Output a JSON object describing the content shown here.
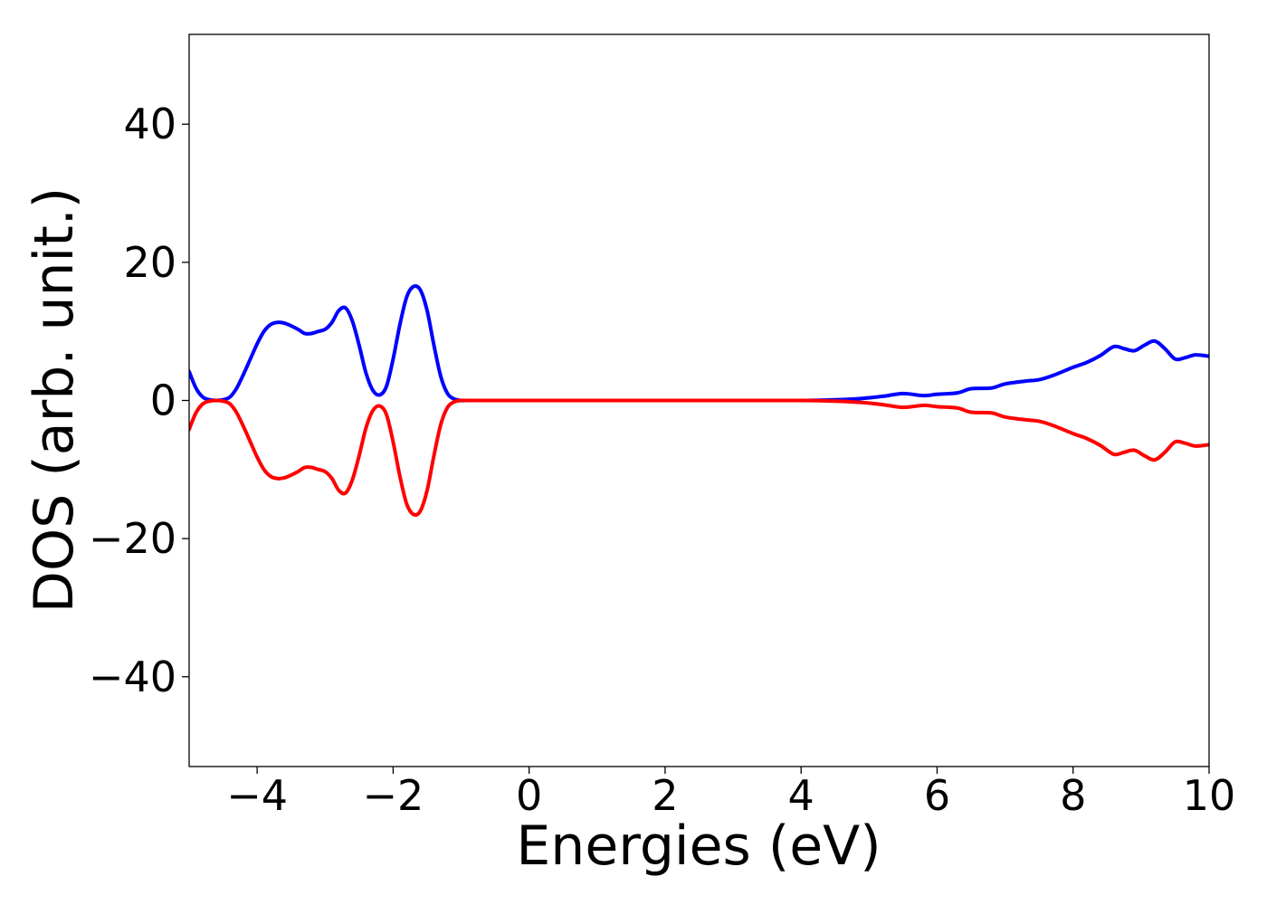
{
  "chart_data": {
    "type": "line",
    "xlabel": "Energies (eV)",
    "ylabel": "DOS (arb. unit.)",
    "xlim": [
      -5,
      10
    ],
    "ylim": [
      -53,
      53
    ],
    "xticks": [
      -4,
      -2,
      0,
      2,
      4,
      6,
      8,
      10
    ],
    "yticks": [
      -40,
      -20,
      0,
      20,
      40
    ],
    "xtick_labels": [
      "−4",
      "−2",
      "0",
      "2",
      "4",
      "6",
      "8",
      "10"
    ],
    "ytick_labels": [
      "−40",
      "−20",
      "0",
      "20",
      "40"
    ],
    "grid": false,
    "series": [
      {
        "color": "#0000ff",
        "x": [
          -5.0,
          -4.9,
          -4.8,
          -4.7,
          -4.6,
          -4.5,
          -4.4,
          -4.3,
          -4.2,
          -4.1,
          -4.0,
          -3.9,
          -3.8,
          -3.7,
          -3.6,
          -3.5,
          -3.4,
          -3.3,
          -3.2,
          -3.1,
          -3.0,
          -2.9,
          -2.8,
          -2.7,
          -2.6,
          -2.5,
          -2.4,
          -2.3,
          -2.2,
          -2.1,
          -2.0,
          -1.9,
          -1.8,
          -1.7,
          -1.6,
          -1.5,
          -1.4,
          -1.3,
          -1.2,
          -1.1,
          -1.0,
          -0.9,
          -0.8,
          -0.7,
          -0.6,
          -0.5,
          0.0,
          1.0,
          2.0,
          3.0,
          4.0,
          4.5,
          4.9,
          5.2,
          5.5,
          5.8,
          6.0,
          6.3,
          6.5,
          6.8,
          7.0,
          7.3,
          7.5,
          7.7,
          8.0,
          8.2,
          8.4,
          8.6,
          8.75,
          8.9,
          9.05,
          9.2,
          9.35,
          9.5,
          9.65,
          9.8,
          10.0
        ],
        "values": [
          4.2,
          1.8,
          0.5,
          0.1,
          0.0,
          0.1,
          0.5,
          1.8,
          3.8,
          6.0,
          8.2,
          10.0,
          11.0,
          11.3,
          11.2,
          10.8,
          10.3,
          9.7,
          9.7,
          10.0,
          10.3,
          11.3,
          13.0,
          13.4,
          11.5,
          8.0,
          4.0,
          1.5,
          0.8,
          2.0,
          6.0,
          11.0,
          15.0,
          16.5,
          16.0,
          13.0,
          8.0,
          3.5,
          1.0,
          0.2,
          0.0,
          0.0,
          0.0,
          0.0,
          0.0,
          0.0,
          0.0,
          0.0,
          0.0,
          0.0,
          0.0,
          0.1,
          0.3,
          0.6,
          1.0,
          0.7,
          0.9,
          1.1,
          1.7,
          1.8,
          2.4,
          2.8,
          3.0,
          3.6,
          4.8,
          5.5,
          6.5,
          7.8,
          7.5,
          7.2,
          8.0,
          8.6,
          7.5,
          6.0,
          6.2,
          6.6,
          6.4
        ]
      },
      {
        "color": "#ff0000",
        "x": [
          -5.0,
          -4.9,
          -4.8,
          -4.7,
          -4.6,
          -4.5,
          -4.4,
          -4.3,
          -4.2,
          -4.1,
          -4.0,
          -3.9,
          -3.8,
          -3.7,
          -3.6,
          -3.5,
          -3.4,
          -3.3,
          -3.2,
          -3.1,
          -3.0,
          -2.9,
          -2.8,
          -2.7,
          -2.6,
          -2.5,
          -2.4,
          -2.3,
          -2.2,
          -2.1,
          -2.0,
          -1.9,
          -1.8,
          -1.7,
          -1.6,
          -1.5,
          -1.4,
          -1.3,
          -1.2,
          -1.1,
          -1.0,
          -0.9,
          -0.8,
          -0.7,
          -0.6,
          -0.5,
          0.0,
          1.0,
          2.0,
          3.0,
          4.0,
          4.5,
          4.9,
          5.2,
          5.5,
          5.8,
          6.0,
          6.3,
          6.5,
          6.8,
          7.0,
          7.3,
          7.5,
          7.7,
          8.0,
          8.2,
          8.4,
          8.6,
          8.75,
          8.9,
          9.05,
          9.2,
          9.35,
          9.5,
          9.65,
          9.8,
          10.0
        ],
        "values": [
          -4.2,
          -1.8,
          -0.5,
          -0.1,
          0.0,
          -0.1,
          -0.5,
          -1.8,
          -3.8,
          -6.0,
          -8.2,
          -10.0,
          -11.0,
          -11.3,
          -11.2,
          -10.8,
          -10.3,
          -9.7,
          -9.7,
          -10.0,
          -10.3,
          -11.3,
          -13.0,
          -13.4,
          -11.5,
          -8.0,
          -4.0,
          -1.5,
          -0.8,
          -2.0,
          -6.0,
          -11.0,
          -15.0,
          -16.5,
          -16.0,
          -13.0,
          -8.0,
          -3.5,
          -1.0,
          -0.2,
          0.0,
          0.0,
          0.0,
          0.0,
          0.0,
          0.0,
          0.0,
          0.0,
          0.0,
          0.0,
          0.0,
          -0.1,
          -0.3,
          -0.6,
          -1.0,
          -0.7,
          -0.9,
          -1.1,
          -1.7,
          -1.8,
          -2.4,
          -2.8,
          -3.0,
          -3.6,
          -4.8,
          -5.5,
          -6.5,
          -7.8,
          -7.5,
          -7.2,
          -8.0,
          -8.6,
          -7.5,
          -6.0,
          -6.2,
          -6.6,
          -6.4
        ]
      }
    ]
  }
}
